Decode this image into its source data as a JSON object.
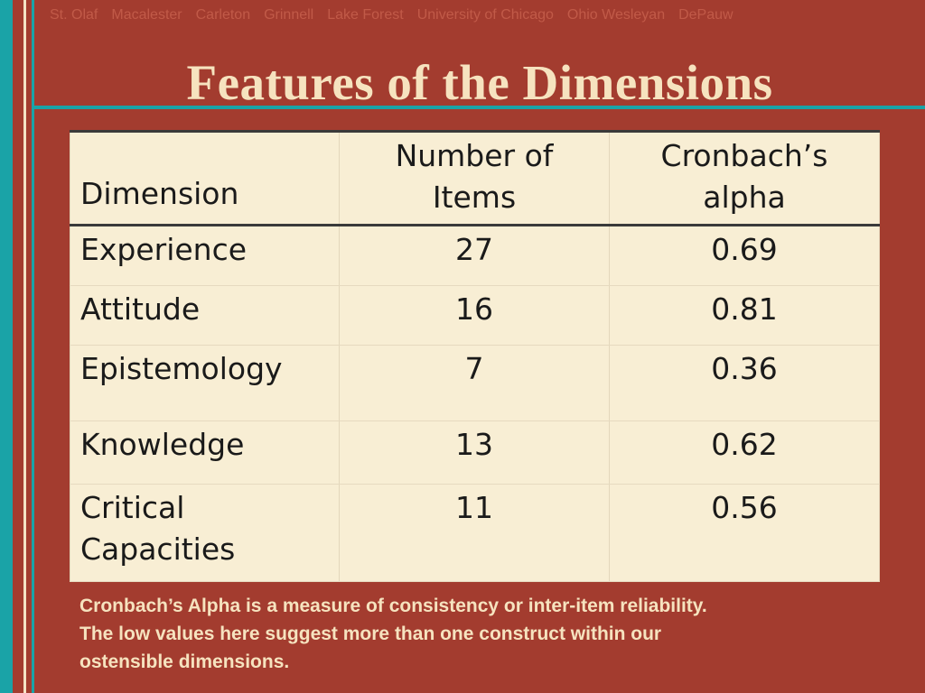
{
  "nav": {
    "items": [
      "St. Olaf",
      "Macalester",
      "Carleton",
      "Grinnell",
      "Lake Forest",
      "University of Chicago",
      "Ohio Wesleyan",
      "DePauw"
    ]
  },
  "slide": {
    "title": "Features of the Dimensions"
  },
  "table": {
    "headers": {
      "dimension": "Dimension",
      "items_line1": "Number of",
      "items_line2": "Items",
      "alpha_line1": "Cronbach’s",
      "alpha_line2": "alpha"
    },
    "rows": [
      {
        "dimension": "Experience",
        "items": "27",
        "alpha": "0.69"
      },
      {
        "dimension": "Attitude",
        "items": "16",
        "alpha": "0.81"
      },
      {
        "dimension": "Epistemology",
        "items": "7",
        "alpha": "0.36"
      },
      {
        "dimension": "Knowledge",
        "items": "13",
        "alpha": "0.62"
      },
      {
        "dimension_line1": "Critical",
        "dimension_line2": "Capacities",
        "items": "11",
        "alpha": "0.56"
      }
    ]
  },
  "note": {
    "line1": "Cronbach’s Alpha is a measure of consistency or inter-item reliability.",
    "line2": "The low values here suggest more than one construct within our",
    "line3": "ostensible dimensions."
  },
  "colors": {
    "background": "#a33c2f",
    "accent_teal": "#1aa3a7",
    "title_cream": "#f6e3bf",
    "table_bg": "#f8eed4"
  }
}
